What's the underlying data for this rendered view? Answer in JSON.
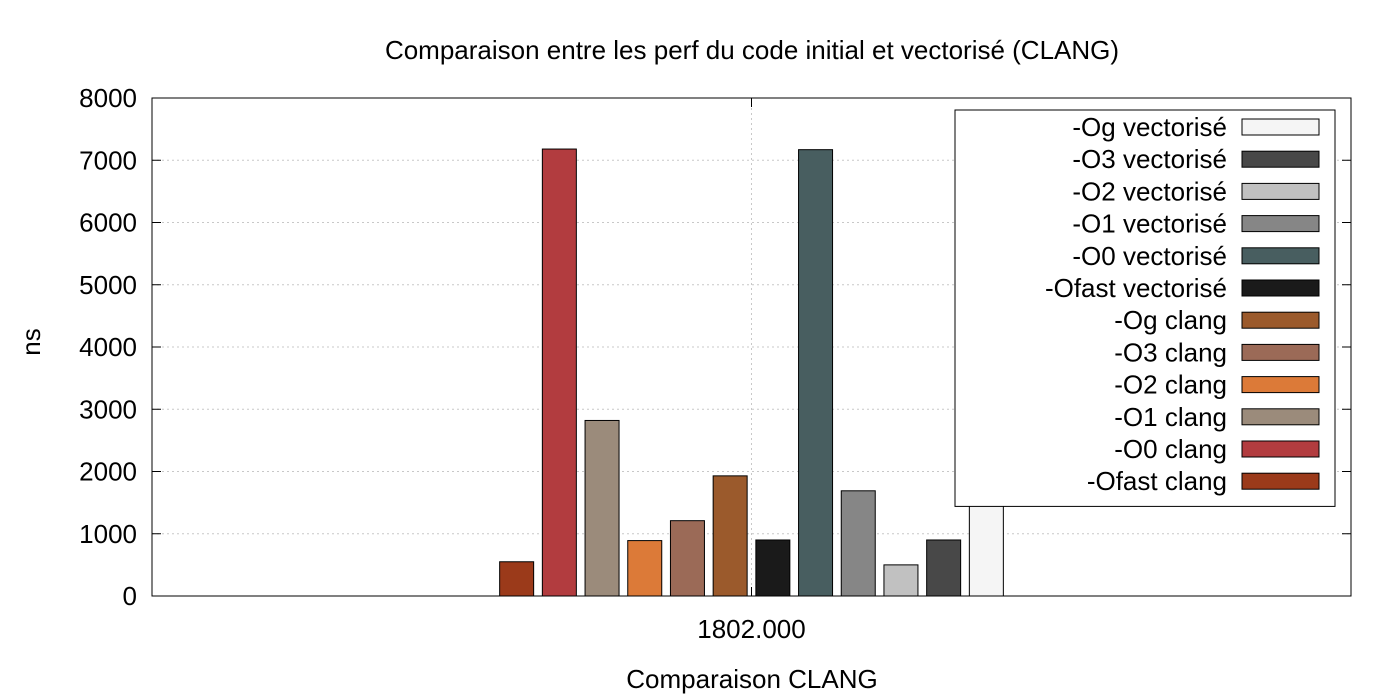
{
  "chart_data": {
    "type": "bar",
    "title": "Comparaison entre les perf du code initial et vectorisé (CLANG)",
    "xlabel": "Comparaison CLANG",
    "ylabel": "ns",
    "categories": [
      "1802.000"
    ],
    "ylim": [
      0,
      8000
    ],
    "yticks": [
      0,
      1000,
      2000,
      3000,
      4000,
      5000,
      6000,
      7000,
      8000
    ],
    "grid": true,
    "legend_position": "top-right",
    "series": [
      {
        "name": "-Ofast clang",
        "color": "#9b3a1a",
        "values": [
          550
        ]
      },
      {
        "name": "-O0 clang",
        "color": "#b23c3f",
        "values": [
          7180
        ]
      },
      {
        "name": "-O1 clang",
        "color": "#9b8b7b",
        "values": [
          2820
        ]
      },
      {
        "name": "-O2 clang",
        "color": "#dc7a38",
        "values": [
          890
        ]
      },
      {
        "name": "-O3 clang",
        "color": "#9b6a57",
        "values": [
          1210
        ]
      },
      {
        "name": "-Og clang",
        "color": "#9b5a2c",
        "values": [
          1930
        ]
      },
      {
        "name": "-Ofast vectorisé",
        "color": "#1a1a1a",
        "values": [
          900
        ]
      },
      {
        "name": "-O0 vectorisé",
        "color": "#485e60",
        "values": [
          7170
        ]
      },
      {
        "name": "-O1 vectorisé",
        "color": "#868686",
        "values": [
          1690
        ]
      },
      {
        "name": "-O2 vectorisé",
        "color": "#c1c1c1",
        "values": [
          500
        ]
      },
      {
        "name": "-O3 vectorisé",
        "color": "#484848",
        "values": [
          900
        ]
      },
      {
        "name": "-Og vectorisé",
        "color": "#f5f5f5",
        "values": [
          1800
        ]
      }
    ]
  }
}
